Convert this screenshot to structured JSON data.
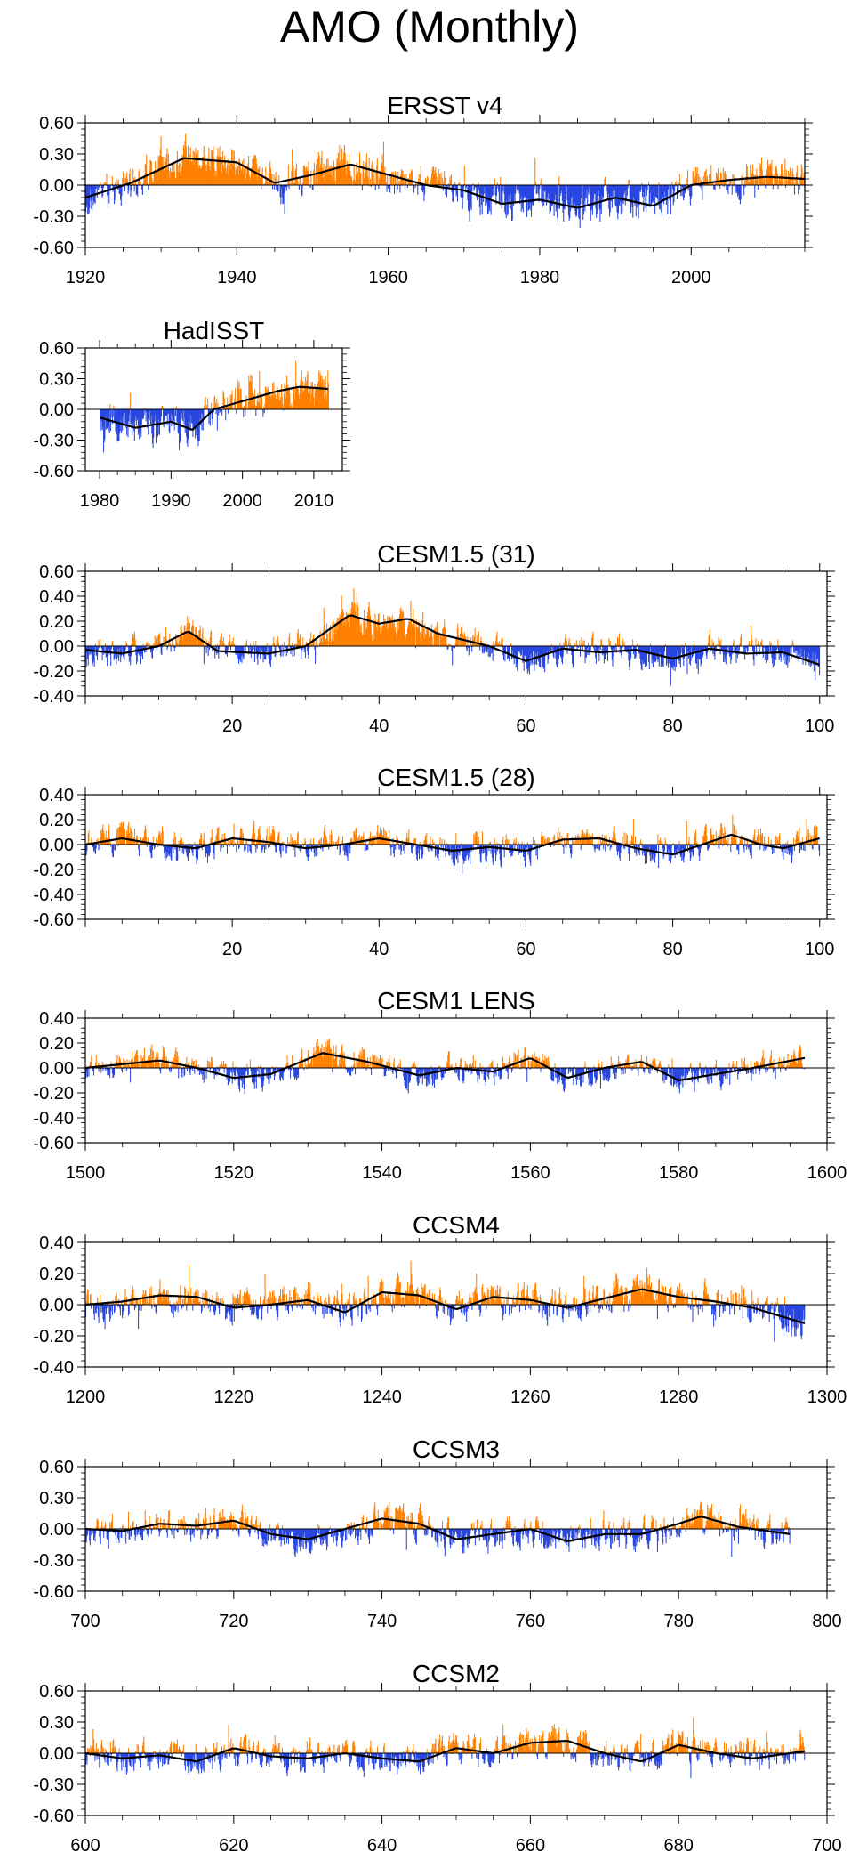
{
  "title": "AMO (Monthly)",
  "colors": {
    "positive": "#ff8000",
    "negative": "#2846e0",
    "smooth": "#000000",
    "axis": "#000000"
  },
  "chart_data": [
    {
      "type": "bar",
      "title": "ERSST v4",
      "xlim": [
        1920,
        2015
      ],
      "ylim": [
        -0.6,
        0.6
      ],
      "xticks": [
        "1920",
        "1940",
        "1960",
        "1980",
        "2000"
      ],
      "yticks": [
        "0.60",
        "0.30",
        "0.00",
        "-0.30",
        "-0.60"
      ],
      "xkeys": [
        1920,
        1926,
        1933,
        1940,
        1945,
        1950,
        1955,
        1960,
        1965,
        1970,
        1975,
        1980,
        1985,
        1990,
        1995,
        2000,
        2005,
        2010,
        2015
      ],
      "smooth": [
        -0.12,
        0.02,
        0.26,
        0.22,
        0.02,
        0.1,
        0.2,
        0.1,
        0.0,
        -0.05,
        -0.18,
        -0.14,
        -0.22,
        -0.12,
        -0.2,
        0.0,
        0.05,
        0.08,
        0.06
      ],
      "amp": 0.2,
      "noisePos": [
        0.0,
        0.0
      ]
    },
    {
      "type": "bar",
      "title": "HadISST",
      "xlim": [
        1978,
        2014
      ],
      "ylim": [
        -0.6,
        0.6
      ],
      "xticks": [
        "1980",
        "1990",
        "2000",
        "2010"
      ],
      "yticks": [
        "0.60",
        "0.30",
        "0.00",
        "-0.30",
        "-0.60"
      ],
      "xkeys": [
        1980,
        1985,
        1990,
        1993,
        1996,
        2000,
        2005,
        2008,
        2012
      ],
      "smooth": [
        -0.08,
        -0.18,
        -0.12,
        -0.2,
        0.0,
        0.08,
        0.18,
        0.22,
        0.2
      ],
      "amp": 0.2
    },
    {
      "type": "bar",
      "title": "CESM1.5 (31)",
      "xlim": [
        0,
        101
      ],
      "ylim": [
        -0.4,
        0.6
      ],
      "xticks": [
        "20",
        "40",
        "60",
        "80",
        "100"
      ],
      "yticks": [
        "0.60",
        "0.40",
        "0.20",
        "0.00",
        "-0.20",
        "-0.40"
      ],
      "xkeys": [
        0,
        5,
        10,
        14,
        18,
        25,
        30,
        36,
        40,
        44,
        48,
        55,
        60,
        65,
        70,
        75,
        80,
        85,
        90,
        95,
        100
      ],
      "smooth": [
        -0.03,
        -0.06,
        0.0,
        0.12,
        -0.04,
        -0.06,
        0.0,
        0.25,
        0.18,
        0.22,
        0.1,
        0.0,
        -0.12,
        -0.02,
        -0.05,
        -0.03,
        -0.1,
        -0.02,
        -0.06,
        -0.05,
        -0.15
      ],
      "amp": 0.13
    },
    {
      "type": "bar",
      "title": "CESM1.5 (28)",
      "xlim": [
        0,
        101
      ],
      "ylim": [
        -0.6,
        0.4
      ],
      "xticks": [
        "20",
        "40",
        "60",
        "80",
        "100"
      ],
      "yticks": [
        "0.40",
        "0.20",
        "0.00",
        "-0.20",
        "-0.40",
        "-0.60"
      ],
      "xkeys": [
        0,
        5,
        10,
        15,
        20,
        25,
        30,
        35,
        40,
        45,
        50,
        55,
        60,
        65,
        70,
        75,
        80,
        85,
        88,
        92,
        95,
        100
      ],
      "smooth": [
        0.0,
        0.05,
        0.0,
        -0.03,
        0.05,
        0.02,
        -0.03,
        0.0,
        0.05,
        0.0,
        -0.05,
        -0.02,
        -0.05,
        0.04,
        0.05,
        -0.03,
        -0.08,
        0.02,
        0.08,
        0.0,
        -0.03,
        0.05
      ],
      "amp": 0.13
    },
    {
      "type": "bar",
      "title": "CESM1 LENS",
      "xlim": [
        1500,
        1600
      ],
      "ylim": [
        -0.6,
        0.4
      ],
      "xticks": [
        "1500",
        "1520",
        "1540",
        "1560",
        "1580",
        "1600"
      ],
      "yticks": [
        "0.40",
        "0.20",
        "0.00",
        "-0.20",
        "-0.40",
        "-0.60"
      ],
      "xkeys": [
        1500,
        1505,
        1510,
        1515,
        1520,
        1525,
        1532,
        1538,
        1545,
        1550,
        1555,
        1560,
        1565,
        1570,
        1575,
        1580,
        1585,
        1590,
        1597
      ],
      "smooth": [
        0.0,
        0.03,
        0.06,
        0.0,
        -0.08,
        -0.05,
        0.12,
        0.05,
        -0.06,
        0.0,
        -0.03,
        0.08,
        -0.08,
        0.0,
        0.05,
        -0.1,
        -0.05,
        0.0,
        0.08
      ],
      "amp": 0.12
    },
    {
      "type": "bar",
      "title": "CCSM4",
      "xlim": [
        1200,
        1300
      ],
      "ylim": [
        -0.4,
        0.4
      ],
      "xticks": [
        "1200",
        "1220",
        "1240",
        "1260",
        "1280",
        "1300"
      ],
      "yticks": [
        "0.40",
        "0.20",
        "0.00",
        "-0.20",
        "-0.40"
      ],
      "xkeys": [
        1200,
        1205,
        1210,
        1215,
        1220,
        1225,
        1230,
        1235,
        1240,
        1245,
        1250,
        1255,
        1260,
        1265,
        1270,
        1275,
        1280,
        1285,
        1290,
        1297
      ],
      "smooth": [
        0.0,
        0.02,
        0.06,
        0.05,
        -0.02,
        0.0,
        0.03,
        -0.05,
        0.08,
        0.06,
        -0.03,
        0.05,
        0.03,
        -0.02,
        0.04,
        0.1,
        0.05,
        0.02,
        -0.02,
        -0.12
      ],
      "amp": 0.12
    },
    {
      "type": "bar",
      "title": "CCSM3",
      "xlim": [
        700,
        800
      ],
      "ylim": [
        -0.6,
        0.6
      ],
      "xticks": [
        "700",
        "720",
        "740",
        "760",
        "780",
        "800"
      ],
      "yticks": [
        "0.60",
        "0.30",
        "0.00",
        "-0.30",
        "-0.60"
      ],
      "xkeys": [
        700,
        705,
        710,
        715,
        720,
        725,
        730,
        735,
        740,
        745,
        750,
        755,
        760,
        765,
        770,
        775,
        780,
        783,
        788,
        795
      ],
      "smooth": [
        0.0,
        -0.02,
        0.05,
        0.03,
        0.08,
        -0.05,
        -0.1,
        0.0,
        0.1,
        0.05,
        -0.1,
        -0.05,
        0.0,
        -0.12,
        -0.05,
        -0.05,
        0.05,
        0.12,
        0.02,
        -0.05
      ],
      "amp": 0.16
    },
    {
      "type": "bar",
      "title": "CCSM2",
      "xlim": [
        600,
        700
      ],
      "ylim": [
        -0.6,
        0.6
      ],
      "xticks": [
        "600",
        "620",
        "640",
        "660",
        "680",
        "700"
      ],
      "yticks": [
        "0.60",
        "0.30",
        "0.00",
        "-0.30",
        "-0.60"
      ],
      "xkeys": [
        600,
        605,
        610,
        615,
        620,
        625,
        630,
        635,
        640,
        645,
        650,
        655,
        660,
        665,
        670,
        675,
        680,
        685,
        690,
        697
      ],
      "smooth": [
        0.0,
        -0.05,
        -0.02,
        -0.08,
        0.05,
        -0.03,
        -0.05,
        0.0,
        -0.05,
        -0.08,
        0.05,
        0.0,
        0.1,
        0.12,
        0.0,
        -0.08,
        0.08,
        0.0,
        -0.05,
        0.02
      ],
      "amp": 0.16
    }
  ]
}
